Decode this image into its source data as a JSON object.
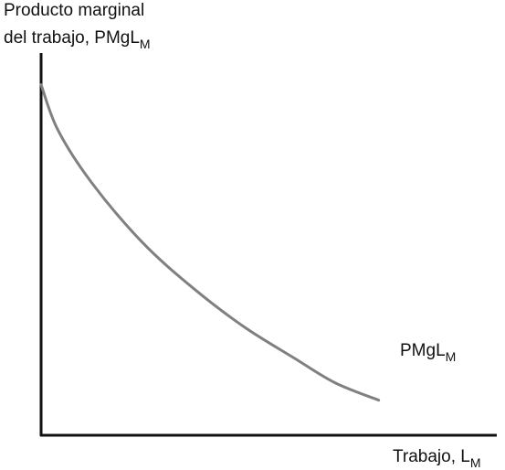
{
  "chart_data": {
    "type": "line",
    "title": "",
    "ylabel": {
      "line1": "Producto marginal",
      "line2": "del trabajo, PMgL",
      "subscript": "M"
    },
    "xlabel": {
      "text": "Trabajo, L",
      "subscript": "M"
    },
    "series": [
      {
        "name": "PMgL",
        "name_subscript": "M",
        "color": "#808080",
        "points": [
          [
            0.0,
            1.0
          ],
          [
            0.05,
            0.87
          ],
          [
            0.15,
            0.72
          ],
          [
            0.3,
            0.55
          ],
          [
            0.45,
            0.42
          ],
          [
            0.6,
            0.31
          ],
          [
            0.75,
            0.22
          ],
          [
            0.87,
            0.15
          ],
          [
            1.0,
            0.1
          ]
        ]
      }
    ],
    "xlim": [
      0,
      1.35
    ],
    "ylim": [
      0,
      1.09
    ],
    "x_ticks": [],
    "y_ticks": [],
    "grid": false,
    "axis_color": "#111111"
  }
}
